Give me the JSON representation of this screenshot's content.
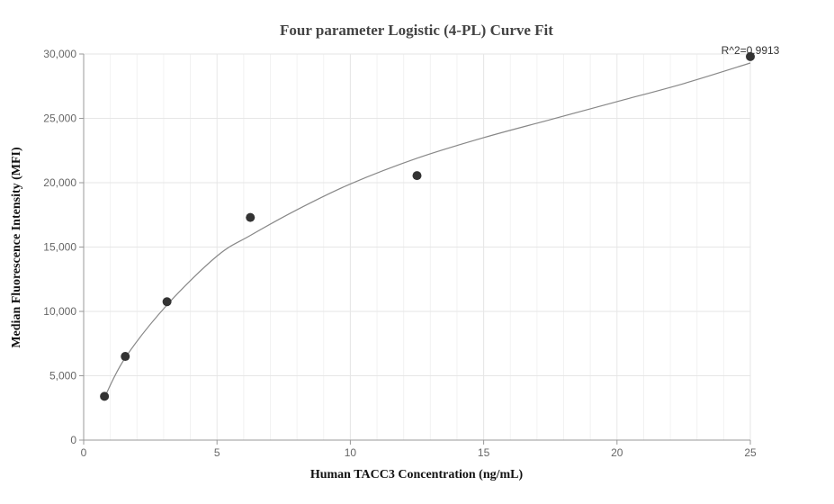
{
  "chart_data": {
    "type": "scatter",
    "title": "Four parameter Logistic (4-PL) Curve Fit",
    "xlabel": "Human TACC3 Concentration (ng/mL)",
    "ylabel": "Median Fluorescence Intensity (MFI)",
    "xlim": [
      0,
      25
    ],
    "ylim": [
      0,
      30000
    ],
    "x_ticks": [
      0,
      5,
      10,
      15,
      20,
      25
    ],
    "x_tick_labels": [
      "0",
      "5",
      "10",
      "15",
      "20",
      "25"
    ],
    "y_ticks": [
      0,
      5000,
      10000,
      15000,
      20000,
      25000,
      30000
    ],
    "y_tick_labels": [
      "0",
      "5,000",
      "10,000",
      "15,000",
      "20,000",
      "25,000",
      "30,000"
    ],
    "grid": true,
    "series": [
      {
        "kind": "points",
        "x": [
          0.78,
          1.56,
          3.125,
          6.25,
          12.5,
          25
        ],
        "y": [
          3400,
          6500,
          10750,
          17300,
          20550,
          29800
        ]
      },
      {
        "kind": "fit-curve",
        "x": [
          0.78,
          1.56,
          3.125,
          5,
          6.25,
          8,
          10,
          12.5,
          15,
          17.5,
          20,
          22.5,
          25
        ],
        "y": [
          3300,
          6400,
          10500,
          14300,
          15900,
          17900,
          19900,
          21900,
          23500,
          24900,
          26300,
          27700,
          29300
        ]
      }
    ],
    "annotation": {
      "text": "R^2=0.9913",
      "x": 25,
      "y": 29800
    },
    "colors": {
      "points": "#333333",
      "curve": "#888888",
      "grid": "#e6e6e6",
      "minor_grid": "#f2f2f2",
      "axis": "#999999"
    }
  }
}
